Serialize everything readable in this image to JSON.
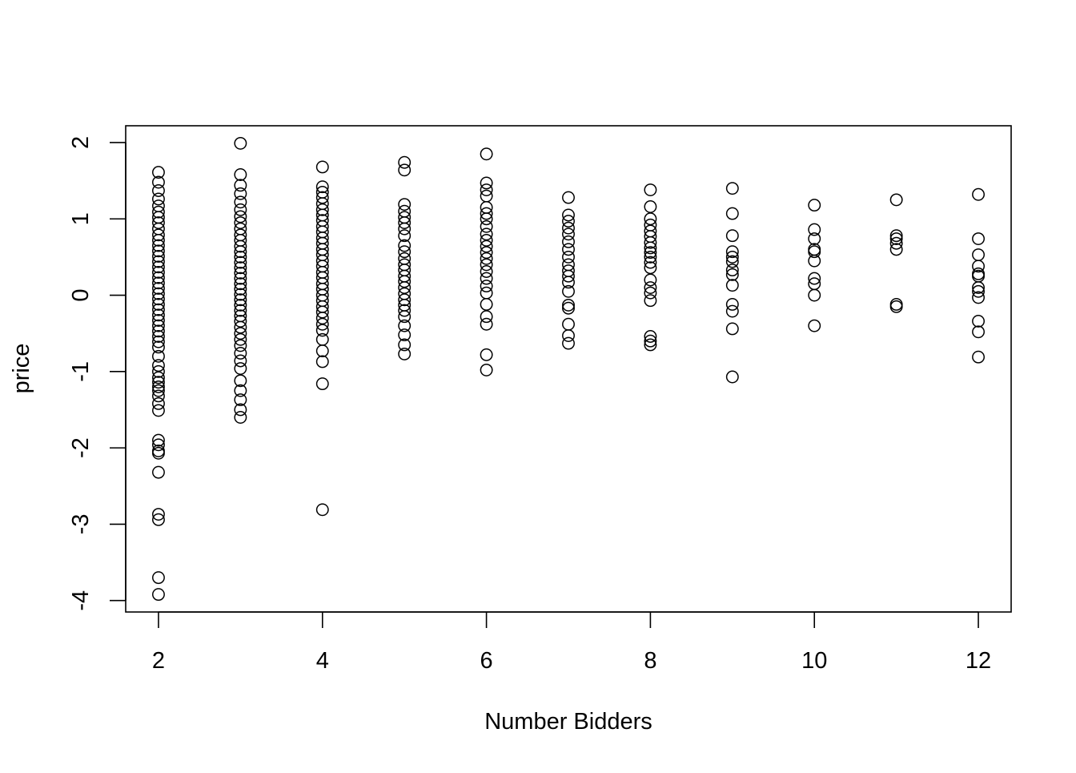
{
  "chart_data": {
    "type": "scatter",
    "title": "",
    "xlabel": "Number Bidders",
    "ylabel": "price",
    "xlim": [
      1.6,
      12.4
    ],
    "ylim": [
      -4.15,
      2.22
    ],
    "x_ticks": [
      2,
      4,
      6,
      8,
      10,
      12
    ],
    "x_tick_labels": [
      "2",
      "4",
      "6",
      "8",
      "10",
      "12"
    ],
    "y_ticks": [
      -4,
      -3,
      -2,
      -1,
      0,
      1,
      2
    ],
    "y_tick_labels": [
      "-4",
      "-3",
      "-2",
      "-1",
      "0",
      "1",
      "2"
    ],
    "marker": "open-circle",
    "grid": false,
    "series": [
      {
        "points": [
          [
            2,
            1.61
          ],
          [
            2,
            1.48
          ],
          [
            2,
            1.37
          ],
          [
            2,
            1.26
          ],
          [
            2,
            1.17
          ],
          [
            2,
            1.09
          ],
          [
            2,
            1.02
          ],
          [
            2,
            0.95
          ],
          [
            2,
            0.87
          ],
          [
            2,
            0.79
          ],
          [
            2,
            0.72
          ],
          [
            2,
            0.65
          ],
          [
            2,
            0.58
          ],
          [
            2,
            0.51
          ],
          [
            2,
            0.44
          ],
          [
            2,
            0.37
          ],
          [
            2,
            0.3
          ],
          [
            2,
            0.23
          ],
          [
            2,
            0.16
          ],
          [
            2,
            0.09
          ],
          [
            2,
            0.02
          ],
          [
            2,
            -0.05
          ],
          [
            2,
            -0.12
          ],
          [
            2,
            -0.19
          ],
          [
            2,
            -0.26
          ],
          [
            2,
            -0.33
          ],
          [
            2,
            -0.4
          ],
          [
            2,
            -0.47
          ],
          [
            2,
            -0.54
          ],
          [
            2,
            -0.61
          ],
          [
            2,
            -0.68
          ],
          [
            2,
            -0.8
          ],
          [
            2,
            -0.92
          ],
          [
            2,
            -1.0
          ],
          [
            2,
            -1.08
          ],
          [
            2,
            -1.14
          ],
          [
            2,
            -1.2
          ],
          [
            2,
            -1.25
          ],
          [
            2,
            -1.32
          ],
          [
            2,
            -1.42
          ],
          [
            2,
            -1.51
          ],
          [
            2,
            -1.9
          ],
          [
            2,
            -1.96
          ],
          [
            2,
            -2.04
          ],
          [
            2,
            -2.07
          ],
          [
            2,
            -2.32
          ],
          [
            2,
            -2.87
          ],
          [
            2,
            -2.94
          ],
          [
            2,
            -3.7
          ],
          [
            2,
            -3.92
          ],
          [
            3,
            1.99
          ],
          [
            3,
            1.58
          ],
          [
            3,
            1.44
          ],
          [
            3,
            1.33
          ],
          [
            3,
            1.22
          ],
          [
            3,
            1.12
          ],
          [
            3,
            1.03
          ],
          [
            3,
            0.95
          ],
          [
            3,
            0.87
          ],
          [
            3,
            0.79
          ],
          [
            3,
            0.72
          ],
          [
            3,
            0.64
          ],
          [
            3,
            0.57
          ],
          [
            3,
            0.5
          ],
          [
            3,
            0.43
          ],
          [
            3,
            0.36
          ],
          [
            3,
            0.29
          ],
          [
            3,
            0.22
          ],
          [
            3,
            0.15
          ],
          [
            3,
            0.08
          ],
          [
            3,
            0.01
          ],
          [
            3,
            -0.06
          ],
          [
            3,
            -0.13
          ],
          [
            3,
            -0.2
          ],
          [
            3,
            -0.27
          ],
          [
            3,
            -0.34
          ],
          [
            3,
            -0.42
          ],
          [
            3,
            -0.5
          ],
          [
            3,
            -0.58
          ],
          [
            3,
            -0.66
          ],
          [
            3,
            -0.76
          ],
          [
            3,
            -0.86
          ],
          [
            3,
            -0.96
          ],
          [
            3,
            -1.12
          ],
          [
            3,
            -1.25
          ],
          [
            3,
            -1.37
          ],
          [
            3,
            -1.5
          ],
          [
            3,
            -1.6
          ],
          [
            4,
            1.68
          ],
          [
            4,
            1.42
          ],
          [
            4,
            1.35
          ],
          [
            4,
            1.28
          ],
          [
            4,
            1.2
          ],
          [
            4,
            1.12
          ],
          [
            4,
            1.05
          ],
          [
            4,
            0.98
          ],
          [
            4,
            0.9
          ],
          [
            4,
            0.83
          ],
          [
            4,
            0.75
          ],
          [
            4,
            0.68
          ],
          [
            4,
            0.6
          ],
          [
            4,
            0.53
          ],
          [
            4,
            0.45
          ],
          [
            4,
            0.38
          ],
          [
            4,
            0.3
          ],
          [
            4,
            0.23
          ],
          [
            4,
            0.15
          ],
          [
            4,
            0.08
          ],
          [
            4,
            0.0
          ],
          [
            4,
            -0.07
          ],
          [
            4,
            -0.15
          ],
          [
            4,
            -0.22
          ],
          [
            4,
            -0.3
          ],
          [
            4,
            -0.38
          ],
          [
            4,
            -0.46
          ],
          [
            4,
            -0.58
          ],
          [
            4,
            -0.73
          ],
          [
            4,
            -0.87
          ],
          [
            4,
            -1.16
          ],
          [
            4,
            -2.81
          ],
          [
            5,
            1.74
          ],
          [
            5,
            1.64
          ],
          [
            5,
            1.19
          ],
          [
            5,
            1.1
          ],
          [
            5,
            1.02
          ],
          [
            5,
            0.95
          ],
          [
            5,
            0.87
          ],
          [
            5,
            0.78
          ],
          [
            5,
            0.65
          ],
          [
            5,
            0.57
          ],
          [
            5,
            0.48
          ],
          [
            5,
            0.4
          ],
          [
            5,
            0.33
          ],
          [
            5,
            0.25
          ],
          [
            5,
            0.18
          ],
          [
            5,
            0.1
          ],
          [
            5,
            0.02
          ],
          [
            5,
            -0.06
          ],
          [
            5,
            -0.13
          ],
          [
            5,
            -0.2
          ],
          [
            5,
            -0.28
          ],
          [
            5,
            -0.4
          ],
          [
            5,
            -0.52
          ],
          [
            5,
            -0.65
          ],
          [
            5,
            -0.77
          ],
          [
            6,
            1.85
          ],
          [
            6,
            1.47
          ],
          [
            6,
            1.38
          ],
          [
            6,
            1.3
          ],
          [
            6,
            1.15
          ],
          [
            6,
            1.07
          ],
          [
            6,
            1.0
          ],
          [
            6,
            0.9
          ],
          [
            6,
            0.8
          ],
          [
            6,
            0.72
          ],
          [
            6,
            0.64
          ],
          [
            6,
            0.56
          ],
          [
            6,
            0.48
          ],
          [
            6,
            0.4
          ],
          [
            6,
            0.31
          ],
          [
            6,
            0.22
          ],
          [
            6,
            0.12
          ],
          [
            6,
            0.03
          ],
          [
            6,
            -0.12
          ],
          [
            6,
            -0.28
          ],
          [
            6,
            -0.38
          ],
          [
            6,
            -0.78
          ],
          [
            6,
            -0.98
          ],
          [
            7,
            1.28
          ],
          [
            7,
            1.05
          ],
          [
            7,
            0.97
          ],
          [
            7,
            0.88
          ],
          [
            7,
            0.8
          ],
          [
            7,
            0.7
          ],
          [
            7,
            0.6
          ],
          [
            7,
            0.5
          ],
          [
            7,
            0.4
          ],
          [
            7,
            0.32
          ],
          [
            7,
            0.25
          ],
          [
            7,
            0.17
          ],
          [
            7,
            0.05
          ],
          [
            7,
            -0.13
          ],
          [
            7,
            -0.17
          ],
          [
            7,
            -0.38
          ],
          [
            7,
            -0.53
          ],
          [
            7,
            -0.63
          ],
          [
            8,
            1.38
          ],
          [
            8,
            1.16
          ],
          [
            8,
            1.0
          ],
          [
            8,
            0.92
          ],
          [
            8,
            0.84
          ],
          [
            8,
            0.77
          ],
          [
            8,
            0.69
          ],
          [
            8,
            0.62
          ],
          [
            8,
            0.56
          ],
          [
            8,
            0.5
          ],
          [
            8,
            0.43
          ],
          [
            8,
            0.36
          ],
          [
            8,
            0.2
          ],
          [
            8,
            0.1
          ],
          [
            8,
            0.03
          ],
          [
            8,
            -0.07
          ],
          [
            8,
            -0.54
          ],
          [
            8,
            -0.6
          ],
          [
            8,
            -0.65
          ],
          [
            9,
            1.4
          ],
          [
            9,
            1.07
          ],
          [
            9,
            0.78
          ],
          [
            9,
            0.57
          ],
          [
            9,
            0.5
          ],
          [
            9,
            0.44
          ],
          [
            9,
            0.33
          ],
          [
            9,
            0.27
          ],
          [
            9,
            0.13
          ],
          [
            9,
            -0.12
          ],
          [
            9,
            -0.21
          ],
          [
            9,
            -0.44
          ],
          [
            9,
            -1.07
          ],
          [
            10,
            1.18
          ],
          [
            10,
            0.86
          ],
          [
            10,
            0.74
          ],
          [
            10,
            0.6
          ],
          [
            10,
            0.57
          ],
          [
            10,
            0.45
          ],
          [
            10,
            0.22
          ],
          [
            10,
            0.15
          ],
          [
            10,
            0.0
          ],
          [
            10,
            -0.4
          ],
          [
            11,
            1.25
          ],
          [
            11,
            0.78
          ],
          [
            11,
            0.74
          ],
          [
            11,
            0.68
          ],
          [
            11,
            0.6
          ],
          [
            11,
            -0.12
          ],
          [
            11,
            -0.15
          ],
          [
            12,
            1.32
          ],
          [
            12,
            0.74
          ],
          [
            12,
            0.53
          ],
          [
            12,
            0.38
          ],
          [
            12,
            0.28
          ],
          [
            12,
            0.25
          ],
          [
            12,
            0.1
          ],
          [
            12,
            0.05
          ],
          [
            12,
            -0.03
          ],
          [
            12,
            -0.34
          ],
          [
            12,
            -0.48
          ],
          [
            12,
            -0.81
          ]
        ]
      }
    ]
  }
}
